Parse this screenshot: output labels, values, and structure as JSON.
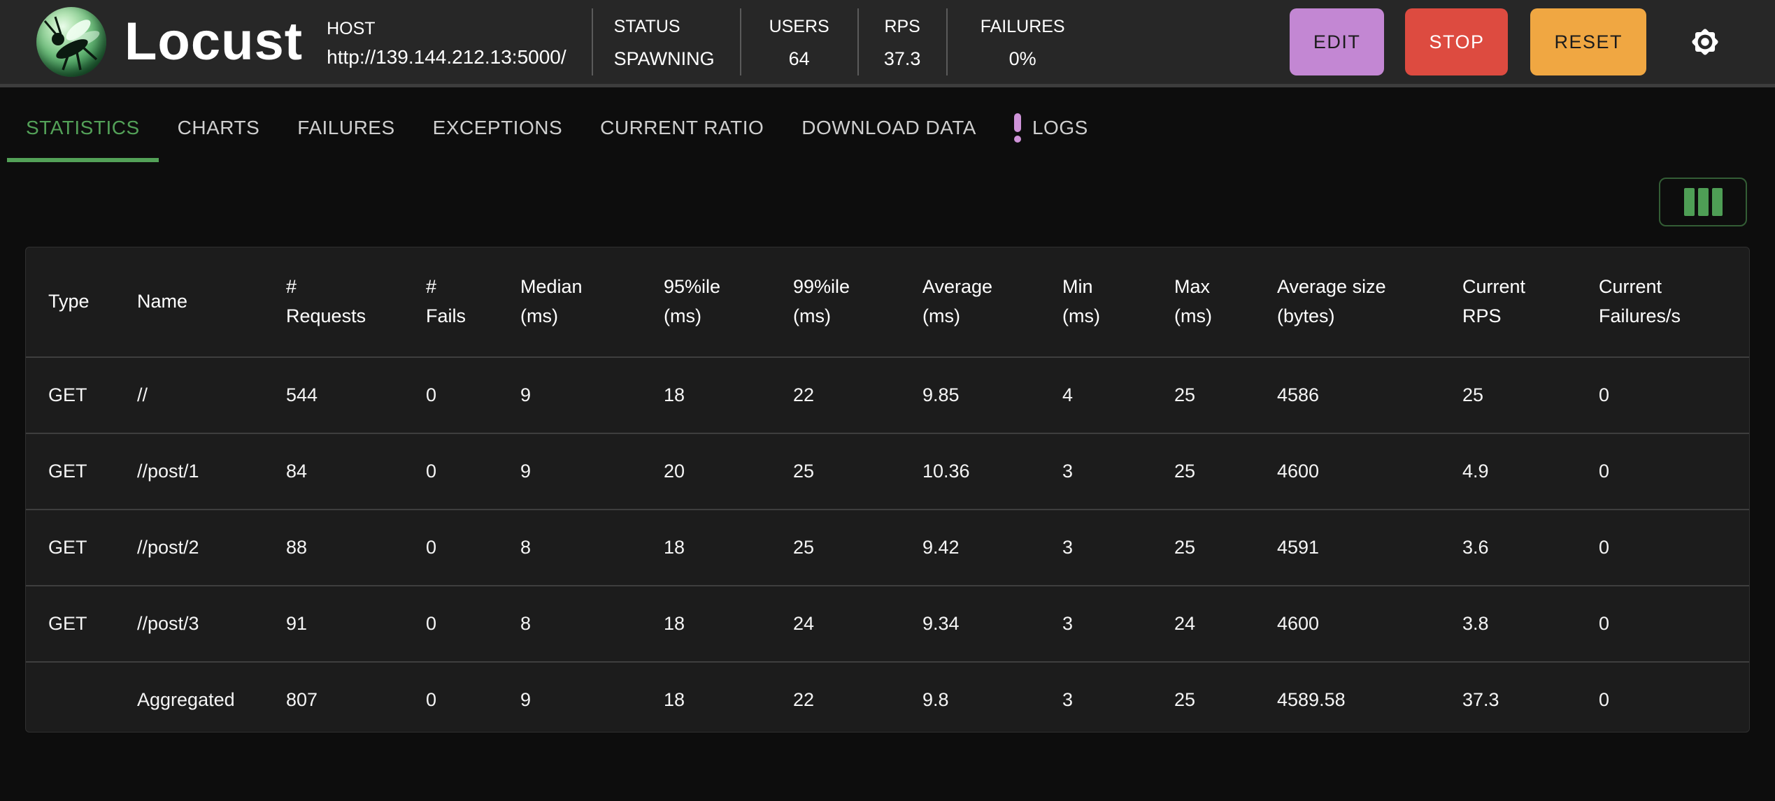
{
  "app": {
    "title": "Locust"
  },
  "header": {
    "host": {
      "label": "HOST",
      "url": "http://139.144.212.13:5000/"
    },
    "stats": [
      {
        "label": "STATUS",
        "value": "SPAWNING"
      },
      {
        "label": "USERS",
        "value": "64"
      },
      {
        "label": "RPS",
        "value": "37.3"
      },
      {
        "label": "FAILURES",
        "value": "0%"
      }
    ],
    "buttons": {
      "edit": "EDIT",
      "stop": "STOP",
      "reset": "RESET"
    },
    "icons": {
      "settings": "gear-icon",
      "logo": "locust-logo"
    }
  },
  "tabs": [
    {
      "label": "STATISTICS",
      "active": true
    },
    {
      "label": "CHARTS",
      "active": false
    },
    {
      "label": "FAILURES",
      "active": false
    },
    {
      "label": "EXCEPTIONS",
      "active": false
    },
    {
      "label": "CURRENT RATIO",
      "active": false
    },
    {
      "label": "DOWNLOAD DATA",
      "active": false
    },
    {
      "label": "LOGS",
      "active": false,
      "badge_icon": "exclamation-icon"
    }
  ],
  "toolbar": {
    "columns_button_icon": "view-columns-icon"
  },
  "table": {
    "columns": [
      "Type",
      "Name",
      "#\nRequests",
      "#\nFails",
      "Median\n(ms)",
      "95%ile\n(ms)",
      "99%ile\n(ms)",
      "Average\n(ms)",
      "Min\n(ms)",
      "Max\n(ms)",
      "Average size\n(bytes)",
      "Current\nRPS",
      "Current\nFailures/s"
    ],
    "rows": [
      [
        "GET",
        "//",
        "544",
        "0",
        "9",
        "18",
        "22",
        "9.85",
        "4",
        "25",
        "4586",
        "25",
        "0"
      ],
      [
        "GET",
        "//post/1",
        "84",
        "0",
        "9",
        "20",
        "25",
        "10.36",
        "3",
        "25",
        "4600",
        "4.9",
        "0"
      ],
      [
        "GET",
        "//post/2",
        "88",
        "0",
        "8",
        "18",
        "25",
        "9.42",
        "3",
        "25",
        "4591",
        "3.6",
        "0"
      ],
      [
        "GET",
        "//post/3",
        "91",
        "0",
        "8",
        "18",
        "24",
        "9.34",
        "3",
        "24",
        "4600",
        "3.8",
        "0"
      ],
      [
        "",
        "Aggregated",
        "807",
        "0",
        "9",
        "18",
        "22",
        "9.8",
        "3",
        "25",
        "4589.58",
        "37.3",
        "0"
      ]
    ]
  },
  "colors": {
    "accent_green": "#53a158",
    "edit_purple": "#c387d3",
    "stop_red": "#dd4b40",
    "reset_orange": "#f0a742",
    "logs_badge_purple": "#ce93d8",
    "header_bg": "#272727",
    "page_bg": "#0d0d0d",
    "panel_bg": "#1c1c1c"
  }
}
